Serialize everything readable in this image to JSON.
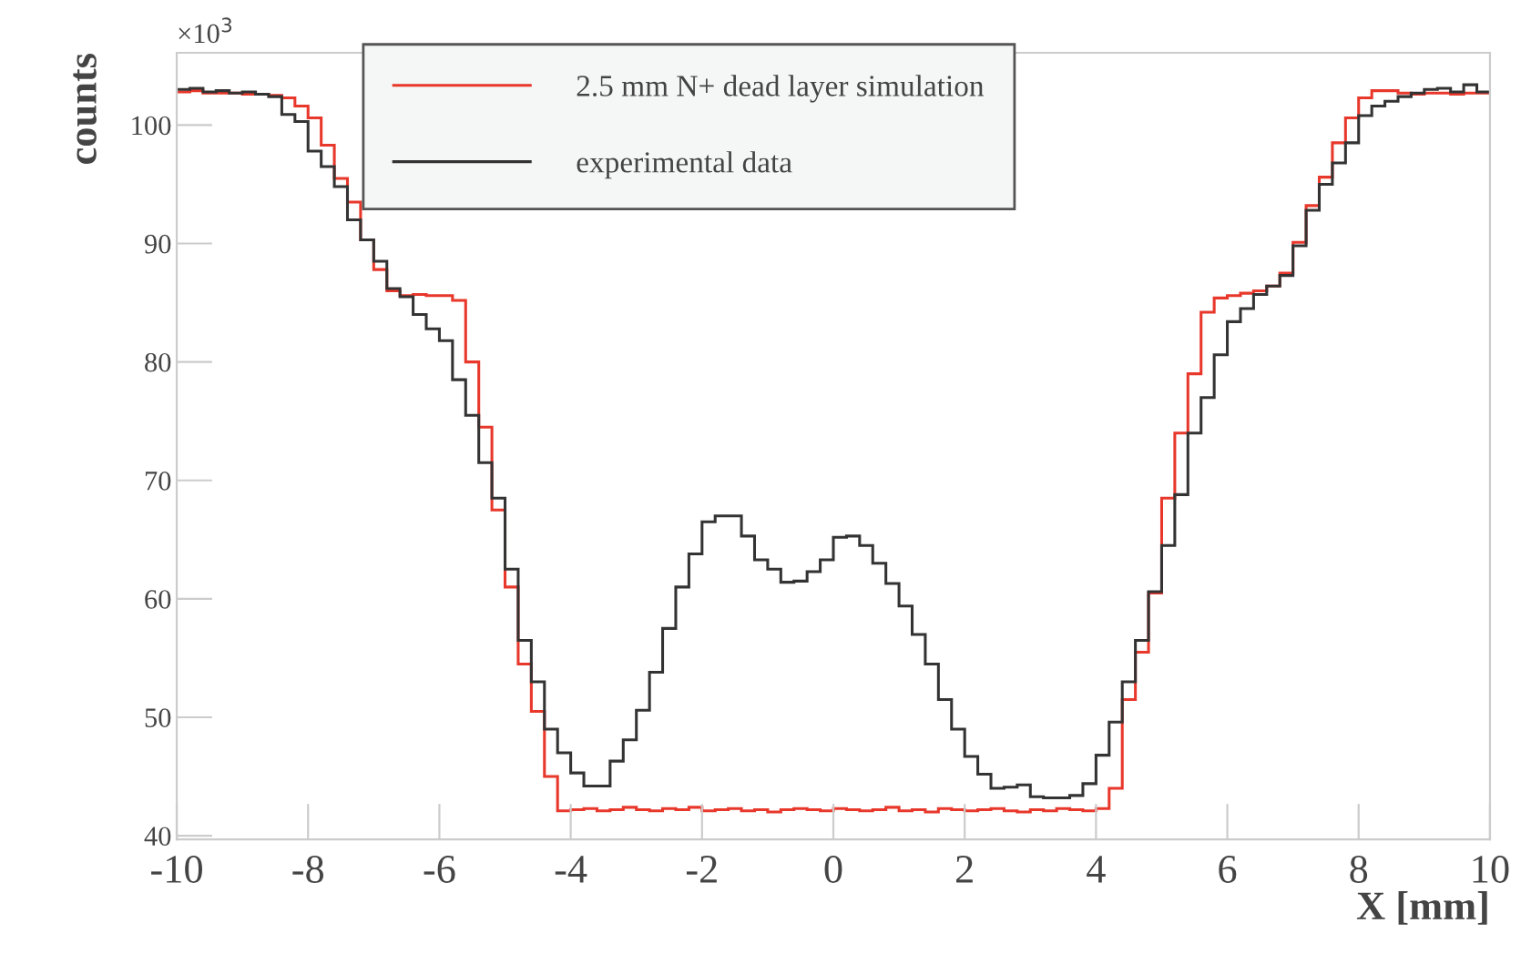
{
  "chart_data": {
    "type": "histogram",
    "xlabel": "X [mm]",
    "ylabel": "counts",
    "annotations": [
      "×10$^{3}$"
    ],
    "bins": [
      -10,
      -9.8,
      -9.6,
      -9.4,
      -9.2,
      -9,
      -8.8,
      -8.6,
      -8.4,
      -8.2,
      -8,
      -7.8,
      -7.6,
      -7.4,
      -7.2,
      -7,
      -6.8,
      -6.6,
      -6.4,
      -6.2,
      -6,
      -5.8,
      -5.6,
      -5.4,
      -5.2,
      -5,
      -4.8,
      -4.6,
      -4.4,
      -4.2,
      -4,
      -3.8,
      -3.6,
      -3.4,
      -3.2,
      -3,
      -2.8,
      -2.6,
      -2.4,
      -2.2,
      -2,
      -1.8,
      -1.6,
      -1.4,
      -1.2,
      -1,
      -0.8,
      -0.6,
      -0.4,
      -0.2,
      0,
      0.2,
      0.4,
      0.6,
      0.8,
      1,
      1.2,
      1.4,
      1.6,
      1.8,
      2,
      2.2,
      2.4,
      2.6,
      2.8,
      3,
      3.2,
      3.4,
      3.6,
      3.8,
      4,
      4.2,
      4.4,
      4.6,
      4.8,
      5,
      5.2,
      5.4,
      5.6,
      5.8,
      6,
      6.2,
      6.4,
      6.6,
      6.8,
      7,
      7.2,
      7.4,
      7.6,
      7.8,
      8,
      8.2,
      8.4,
      8.6,
      8.8,
      9,
      9.2,
      9.4,
      9.6,
      9.8,
      10
    ],
    "series": [
      {
        "name": "2.5 mm N+ dead layer simulation",
        "color": "#e8372b",
        "values": [
          102.8,
          102.9,
          102.7,
          102.7,
          102.7,
          102.6,
          102.6,
          102.5,
          102.3,
          101.6,
          100.6,
          98.3,
          95.5,
          93.5,
          90.3,
          87.8,
          86.0,
          85.6,
          85.7,
          85.6,
          85.6,
          85.2,
          80.0,
          74.5,
          67.5,
          61.0,
          54.5,
          50.5,
          45.0,
          42.1,
          42.2,
          42.3,
          42.1,
          42.2,
          42.4,
          42.2,
          42.1,
          42.3,
          42.2,
          42.4,
          42.1,
          42.2,
          42.3,
          42.1,
          42.2,
          42.0,
          42.2,
          42.3,
          42.2,
          42.1,
          42.3,
          42.2,
          42.1,
          42.2,
          42.4,
          42.1,
          42.2,
          42.0,
          42.3,
          42.2,
          42.1,
          42.2,
          42.3,
          42.1,
          42.0,
          42.2,
          42.1,
          42.3,
          42.2,
          42.1,
          42.3,
          44.0,
          51.5,
          55.5,
          60.5,
          68.5,
          74.0,
          79.0,
          84.2,
          85.4,
          85.6,
          85.8,
          86.0,
          86.4,
          87.5,
          90.1,
          93.2,
          95.6,
          98.5,
          100.6,
          102.3,
          102.9,
          102.9,
          102.7,
          102.6,
          102.7,
          102.7,
          102.6,
          102.7,
          102.7
        ]
      },
      {
        "name": "experimental data",
        "color": "#333333",
        "values": [
          103.0,
          103.1,
          102.8,
          102.9,
          102.7,
          102.8,
          102.6,
          102.4,
          100.9,
          100.3,
          97.8,
          96.5,
          94.8,
          92.0,
          90.3,
          88.5,
          86.2,
          85.5,
          84.0,
          82.8,
          81.8,
          78.5,
          75.5,
          71.5,
          68.5,
          62.5,
          56.5,
          53.0,
          49.0,
          47.0,
          45.3,
          44.2,
          44.2,
          46.3,
          48.1,
          50.6,
          53.8,
          57.5,
          61.0,
          63.8,
          66.5,
          67.0,
          67.0,
          65.3,
          63.3,
          62.5,
          61.4,
          61.5,
          62.3,
          63.3,
          65.2,
          65.3,
          64.5,
          63.0,
          61.3,
          59.4,
          57.0,
          54.5,
          51.5,
          49.0,
          46.7,
          45.2,
          44.0,
          44.1,
          44.3,
          43.3,
          43.2,
          43.2,
          43.4,
          44.4,
          46.8,
          49.6,
          53.0,
          56.5,
          60.6,
          64.5,
          68.8,
          74.0,
          77.0,
          80.6,
          83.4,
          84.5,
          85.7,
          86.4,
          87.3,
          89.8,
          92.8,
          95.0,
          96.8,
          98.5,
          100.8,
          101.6,
          102.0,
          102.4,
          102.7,
          103.0,
          103.1,
          102.8,
          103.4,
          102.8
        ]
      }
    ],
    "xlim": [
      -10,
      10
    ],
    "xticks": [
      -10,
      -8,
      -6,
      -4,
      -2,
      0,
      2,
      4,
      6,
      8,
      10
    ],
    "ylim": [
      39.7,
      106.1
    ],
    "yticks": [
      40,
      50,
      60,
      70,
      80,
      90,
      100
    ],
    "grid": false,
    "legend": "top"
  }
}
